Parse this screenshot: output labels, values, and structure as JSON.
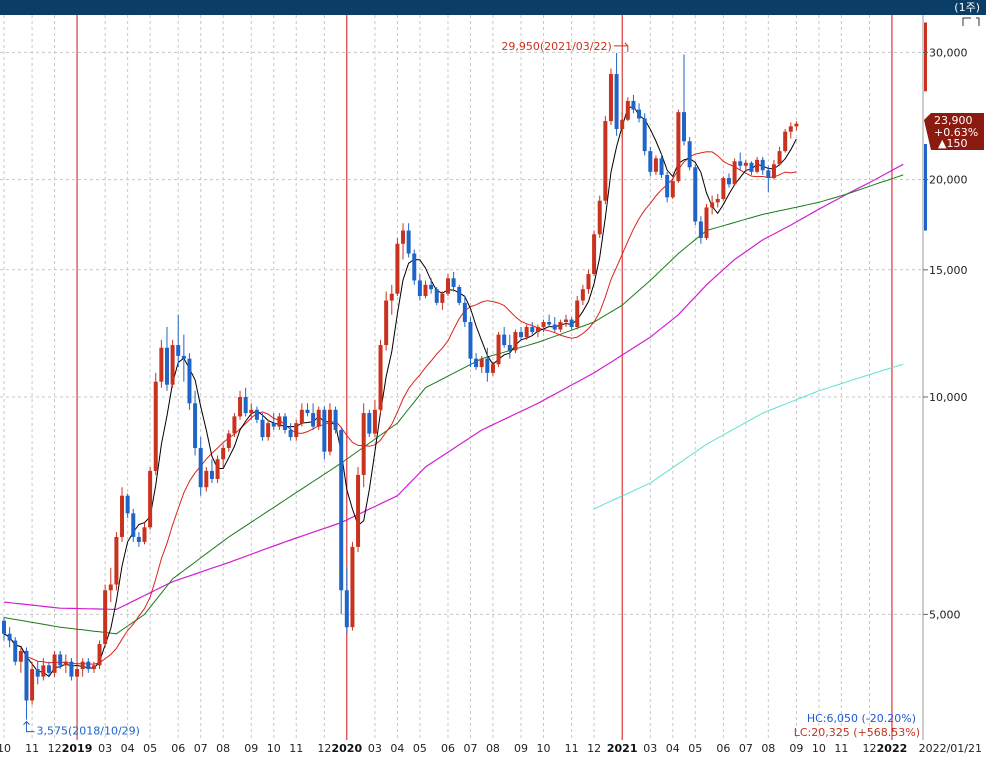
{
  "toolbar": {
    "period_label": "(1주)",
    "corner_icon": "bracket-icon"
  },
  "colors": {
    "up": "#c8321e",
    "down": "#1f64c8",
    "ma5": "#000000",
    "ma20": "#e0201a",
    "ma60": "#1b7a1b",
    "ma120": "#d020d0",
    "ma240": "#5fe0d0",
    "grid": "#c8c8c8",
    "year_line": "#d21010",
    "hc": "#2257d6",
    "lc": "#c8321e"
  },
  "chart_data": {
    "type": "candlestick",
    "scale": "log",
    "ylim": [
      3350,
      33800
    ],
    "y_ticks": [
      5000,
      10000,
      15000,
      20000,
      30000
    ],
    "y_tick_labels": [
      "5,000",
      "10,000",
      "15,000",
      "20,000",
      "30,000"
    ],
    "x_tick_labels": [
      {
        "i": 0,
        "label": "10"
      },
      {
        "i": 5,
        "label": "11"
      },
      {
        "i": 9,
        "label": "12"
      },
      {
        "i": 13,
        "label": "2019",
        "year": true
      },
      {
        "i": 18,
        "label": "03"
      },
      {
        "i": 22,
        "label": "04"
      },
      {
        "i": 26,
        "label": "05"
      },
      {
        "i": 31,
        "label": "06"
      },
      {
        "i": 35,
        "label": "07"
      },
      {
        "i": 39,
        "label": "08"
      },
      {
        "i": 44,
        "label": "09"
      },
      {
        "i": 48,
        "label": "10"
      },
      {
        "i": 52,
        "label": "11"
      },
      {
        "i": 57,
        "label": "12"
      },
      {
        "i": 61,
        "label": "2020",
        "year": true
      },
      {
        "i": 66,
        "label": "03"
      },
      {
        "i": 70,
        "label": "04"
      },
      {
        "i": 74,
        "label": "05"
      },
      {
        "i": 79,
        "label": "06"
      },
      {
        "i": 83,
        "label": "07"
      },
      {
        "i": 87,
        "label": "08"
      },
      {
        "i": 92,
        "label": "09"
      },
      {
        "i": 96,
        "label": "10"
      },
      {
        "i": 101,
        "label": "11"
      },
      {
        "i": 105,
        "label": "12"
      },
      {
        "i": 110,
        "label": "2021",
        "year": true
      },
      {
        "i": 115,
        "label": "03"
      },
      {
        "i": 119,
        "label": "04"
      },
      {
        "i": 123,
        "label": "05"
      },
      {
        "i": 128,
        "label": "06"
      },
      {
        "i": 132,
        "label": "07"
      },
      {
        "i": 136,
        "label": "08"
      },
      {
        "i": 141,
        "label": "09"
      },
      {
        "i": 145,
        "label": "10"
      },
      {
        "i": 149,
        "label": "11"
      },
      {
        "i": 154,
        "label": "12"
      },
      {
        "i": 158,
        "label": "2022",
        "year": true
      }
    ],
    "date_label": "2022/01/21",
    "year_lines_at": [
      13,
      61,
      110,
      158
    ],
    "candles": [
      [
        4900,
        4950,
        4600,
        4700
      ],
      [
        4700,
        4800,
        4500,
        4600
      ],
      [
        4600,
        4650,
        4250,
        4300
      ],
      [
        4300,
        4500,
        4150,
        4450
      ],
      [
        4450,
        4500,
        3575,
        3800
      ],
      [
        3800,
        4300,
        3750,
        4200
      ],
      [
        4200,
        4300,
        4000,
        4100
      ],
      [
        4100,
        4350,
        4050,
        4250
      ],
      [
        4250,
        4300,
        4100,
        4150
      ],
      [
        4150,
        4450,
        4100,
        4400
      ],
      [
        4400,
        4450,
        4200,
        4250
      ],
      [
        4250,
        4400,
        4150,
        4300
      ],
      [
        4300,
        4350,
        4050,
        4100
      ],
      [
        4100,
        4250,
        4050,
        4200
      ],
      [
        4200,
        4350,
        4100,
        4300
      ],
      [
        4300,
        4350,
        4150,
        4200
      ],
      [
        4200,
        4300,
        4150,
        4250
      ],
      [
        4250,
        4600,
        4200,
        4550
      ],
      [
        4550,
        5500,
        4500,
        5400
      ],
      [
        5400,
        5800,
        5200,
        5500
      ],
      [
        5500,
        6500,
        5400,
        6400
      ],
      [
        6400,
        7500,
        6300,
        7300
      ],
      [
        7300,
        7350,
        6800,
        6900
      ],
      [
        6900,
        7000,
        6300,
        6400
      ],
      [
        6400,
        6500,
        6200,
        6300
      ],
      [
        6300,
        6700,
        6250,
        6600
      ],
      [
        6600,
        8000,
        6550,
        7900
      ],
      [
        7900,
        10800,
        7800,
        10500
      ],
      [
        10500,
        12000,
        10300,
        11700
      ],
      [
        11700,
        12500,
        10200,
        10400
      ],
      [
        10400,
        12000,
        10300,
        11800
      ],
      [
        11800,
        13000,
        11000,
        11400
      ],
      [
        11400,
        12200,
        10500,
        11300
      ],
      [
        11300,
        11500,
        9600,
        9800
      ],
      [
        9800,
        10200,
        8300,
        8500
      ],
      [
        8500,
        8800,
        7300,
        7500
      ],
      [
        7500,
        8000,
        7400,
        7900
      ],
      [
        7900,
        8200,
        7600,
        7700
      ],
      [
        7700,
        8300,
        7600,
        8200
      ],
      [
        8200,
        8600,
        8000,
        8500
      ],
      [
        8500,
        9000,
        8400,
        8900
      ],
      [
        8900,
        9500,
        8800,
        9400
      ],
      [
        9400,
        10200,
        9300,
        10000
      ],
      [
        10000,
        10300,
        9400,
        9500
      ],
      [
        9500,
        9800,
        9300,
        9600
      ],
      [
        9600,
        9700,
        9200,
        9300
      ],
      [
        9300,
        9500,
        8700,
        8800
      ],
      [
        8800,
        9300,
        8700,
        9200
      ],
      [
        9200,
        9500,
        9000,
        9100
      ],
      [
        9100,
        9500,
        9000,
        9400
      ],
      [
        9400,
        9500,
        8900,
        9000
      ],
      [
        9000,
        9200,
        8700,
        8800
      ],
      [
        8800,
        9300,
        8700,
        9200
      ],
      [
        9200,
        9800,
        9100,
        9600
      ],
      [
        9600,
        9800,
        9400,
        9500
      ],
      [
        9500,
        9800,
        9000,
        9100
      ],
      [
        9100,
        9700,
        9000,
        9600
      ],
      [
        9600,
        9700,
        8200,
        8400
      ],
      [
        8400,
        9800,
        8300,
        9600
      ],
      [
        9600,
        9700,
        8900,
        9000
      ],
      [
        9000,
        9100,
        5000,
        5400
      ],
      [
        5400,
        5800,
        4700,
        4800
      ],
      [
        4800,
        6300,
        4750,
        6200
      ],
      [
        6200,
        8000,
        6100,
        7800
      ],
      [
        7800,
        9800,
        7500,
        9500
      ],
      [
        9500,
        9600,
        8800,
        8900
      ],
      [
        8900,
        9900,
        8800,
        9600
      ],
      [
        9600,
        12000,
        9500,
        11800
      ],
      [
        11800,
        14000,
        11600,
        13600
      ],
      [
        13600,
        14300,
        13000,
        13900
      ],
      [
        13900,
        16600,
        13800,
        16300
      ],
      [
        16300,
        17400,
        15500,
        17000
      ],
      [
        17000,
        17400,
        15600,
        15800
      ],
      [
        15800,
        16000,
        14300,
        14500
      ],
      [
        14500,
        14800,
        13600,
        13800
      ],
      [
        13800,
        14500,
        13700,
        14300
      ],
      [
        14300,
        14600,
        13900,
        14100
      ],
      [
        14100,
        14200,
        13400,
        13500
      ],
      [
        13500,
        14000,
        13200,
        13900
      ],
      [
        13900,
        14800,
        13800,
        14600
      ],
      [
        14600,
        14900,
        14000,
        14200
      ],
      [
        14200,
        14300,
        13400,
        13500
      ],
      [
        13500,
        13800,
        12500,
        12700
      ],
      [
        12700,
        12900,
        11000,
        11300
      ],
      [
        11300,
        11500,
        10900,
        11000
      ],
      [
        11000,
        11400,
        10800,
        11300
      ],
      [
        11300,
        11700,
        10500,
        10800
      ],
      [
        10800,
        11200,
        10700,
        11100
      ],
      [
        11100,
        12300,
        11000,
        12200
      ],
      [
        12200,
        12500,
        11700,
        11800
      ],
      [
        11800,
        12200,
        11300,
        11600
      ],
      [
        11600,
        12400,
        11500,
        12300
      ],
      [
        12300,
        12500,
        12000,
        12100
      ],
      [
        12100,
        12600,
        12000,
        12500
      ],
      [
        12500,
        12700,
        12200,
        12300
      ],
      [
        12300,
        12600,
        12100,
        12500
      ],
      [
        12500,
        12800,
        12300,
        12700
      ],
      [
        12700,
        13000,
        12500,
        12600
      ],
      [
        12600,
        12900,
        12300,
        12400
      ],
      [
        12400,
        12800,
        12300,
        12700
      ],
      [
        12700,
        13000,
        12500,
        12800
      ],
      [
        12800,
        12900,
        12400,
        12500
      ],
      [
        12500,
        13800,
        12400,
        13600
      ],
      [
        13600,
        14300,
        13400,
        14100
      ],
      [
        14100,
        15000,
        13900,
        14800
      ],
      [
        14800,
        17000,
        14700,
        16800
      ],
      [
        16800,
        19000,
        16600,
        18700
      ],
      [
        18700,
        24500,
        18500,
        24100
      ],
      [
        24100,
        28500,
        23800,
        28000
      ],
      [
        28000,
        29950,
        23000,
        23500
      ],
      [
        23500,
        24800,
        22800,
        24200
      ],
      [
        24200,
        26000,
        24100,
        25700
      ],
      [
        25700,
        26200,
        24700,
        25000
      ],
      [
        25000,
        25500,
        24000,
        24300
      ],
      [
        24300,
        24700,
        21600,
        21900
      ],
      [
        21900,
        22200,
        20200,
        20500
      ],
      [
        20500,
        21600,
        20300,
        21400
      ],
      [
        21400,
        21700,
        20100,
        20300
      ],
      [
        20300,
        20500,
        18600,
        18900
      ],
      [
        18900,
        20100,
        18800,
        19900
      ],
      [
        19900,
        25000,
        19800,
        24800
      ],
      [
        24800,
        29800,
        22300,
        22600
      ],
      [
        22600,
        22900,
        20600,
        20800
      ],
      [
        20800,
        21000,
        17300,
        17500
      ],
      [
        17500,
        17800,
        16300,
        16600
      ],
      [
        16600,
        18500,
        16500,
        18300
      ],
      [
        18300,
        19000,
        17900,
        18600
      ],
      [
        18600,
        19100,
        18300,
        18800
      ],
      [
        18800,
        20200,
        18700,
        20100
      ],
      [
        20100,
        20400,
        19500,
        19700
      ],
      [
        19700,
        21400,
        19600,
        21200
      ],
      [
        21200,
        21800,
        20600,
        20900
      ],
      [
        20900,
        21300,
        20500,
        21100
      ],
      [
        21100,
        21200,
        20300,
        20500
      ],
      [
        20500,
        21500,
        20400,
        21300
      ],
      [
        21300,
        21500,
        20300,
        20600
      ],
      [
        20600,
        20900,
        19200,
        20100
      ],
      [
        20100,
        21300,
        20000,
        21000
      ],
      [
        21000,
        22200,
        20900,
        21900
      ],
      [
        21900,
        23500,
        21800,
        23300
      ],
      [
        23300,
        24000,
        22800,
        23700
      ],
      [
        23700,
        24100,
        23400,
        23900
      ]
    ],
    "series": [
      {
        "name": "MA5",
        "color_key": "ma5",
        "start": 0
      },
      {
        "name": "MA20",
        "color_key": "ma20",
        "start": 0
      },
      {
        "name": "MA60",
        "color_key": "ma60",
        "start": 0
      },
      {
        "name": "MA120",
        "color_key": "ma120",
        "start": 0
      },
      {
        "name": "MA240",
        "color_key": "ma240",
        "start": 0
      }
    ],
    "ma_series": {
      "ma240": [
        [
          105,
          7000
        ],
        [
          115,
          7600
        ],
        [
          125,
          8600
        ],
        [
          135,
          9500
        ],
        [
          145,
          10200
        ],
        [
          155,
          10800
        ],
        [
          160,
          11100
        ]
      ],
      "ma120": [
        [
          0,
          5200
        ],
        [
          10,
          5100
        ],
        [
          20,
          5080
        ],
        [
          30,
          5550
        ],
        [
          40,
          5900
        ],
        [
          50,
          6300
        ],
        [
          60,
          6700
        ],
        [
          70,
          7300
        ],
        [
          75,
          8000
        ],
        [
          85,
          9000
        ],
        [
          95,
          9800
        ],
        [
          105,
          10800
        ],
        [
          115,
          12100
        ],
        [
          120,
          13000
        ],
        [
          125,
          14300
        ],
        [
          130,
          15500
        ],
        [
          135,
          16500
        ],
        [
          140,
          17300
        ],
        [
          145,
          18200
        ],
        [
          150,
          19100
        ],
        [
          155,
          20000
        ],
        [
          160,
          21000
        ]
      ],
      "ma60": [
        [
          0,
          4950
        ],
        [
          10,
          4800
        ],
        [
          20,
          4700
        ],
        [
          25,
          5000
        ],
        [
          30,
          5600
        ],
        [
          40,
          6400
        ],
        [
          50,
          7200
        ],
        [
          60,
          8100
        ],
        [
          70,
          9200
        ],
        [
          75,
          10300
        ],
        [
          85,
          11300
        ],
        [
          95,
          11900
        ],
        [
          105,
          12700
        ],
        [
          110,
          13400
        ],
        [
          115,
          14500
        ],
        [
          120,
          15800
        ],
        [
          125,
          17000
        ],
        [
          135,
          17900
        ],
        [
          145,
          18600
        ],
        [
          150,
          19100
        ],
        [
          155,
          19700
        ],
        [
          160,
          20300
        ]
      ]
    },
    "annotations": {
      "high": {
        "label": "29,950(2021/03/22)",
        "i": 111,
        "v": 29950
      },
      "low": {
        "label": "3,575(2018/10/29)",
        "i": 4,
        "v": 3575
      }
    },
    "price_box": {
      "price": "23,900",
      "change": "+0.63%",
      "diff": "▲150"
    },
    "hc": "HC:6,050 (-20.20%)",
    "lc": "LC:20,325 (+568.53%)"
  }
}
